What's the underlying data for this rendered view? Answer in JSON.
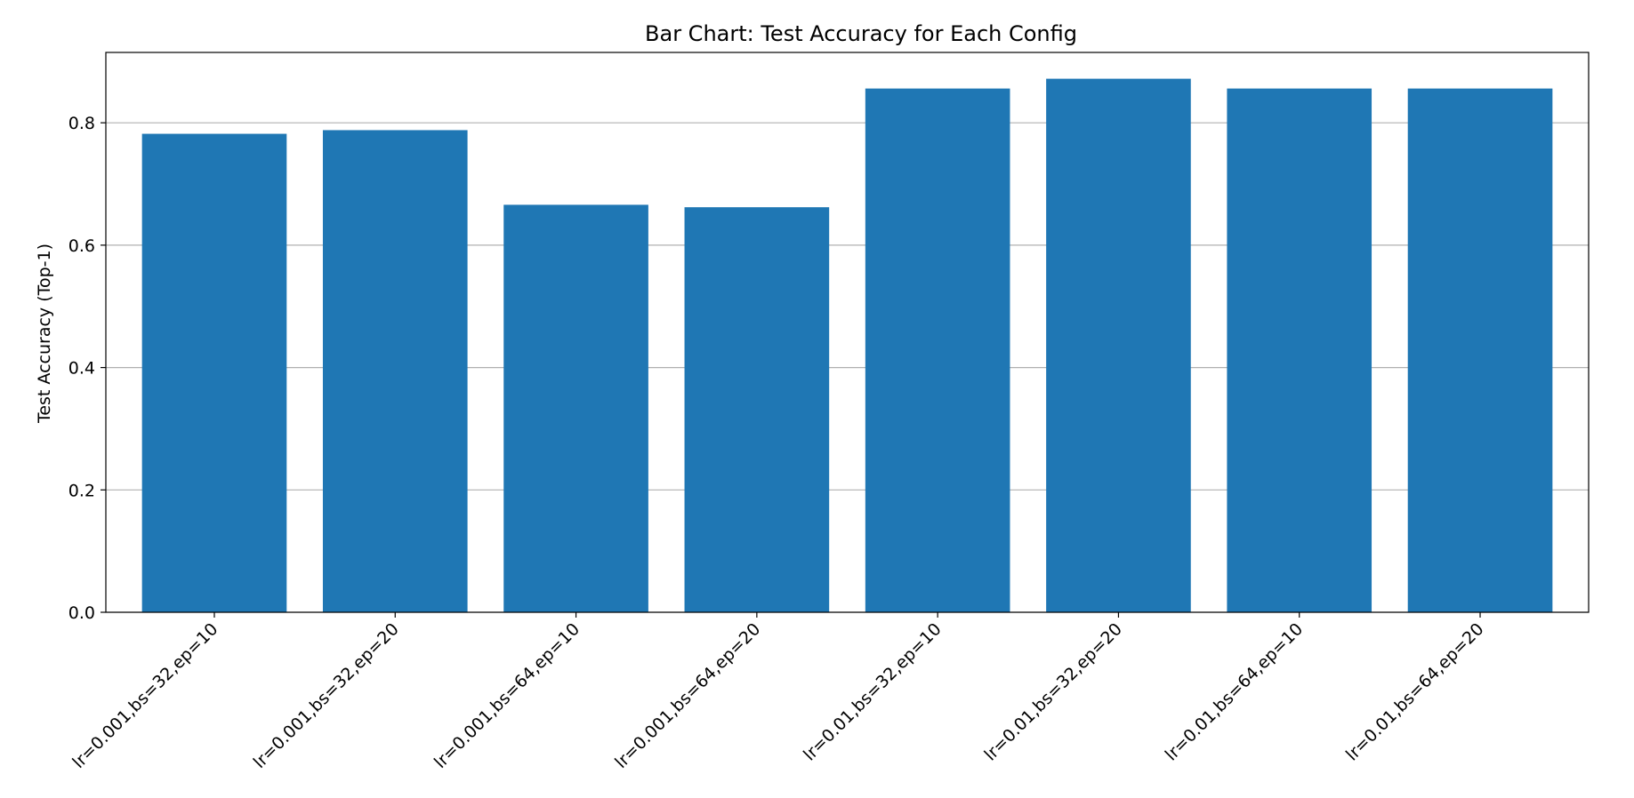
{
  "chart_data": {
    "type": "bar",
    "title": "Bar Chart: Test Accuracy for Each Config",
    "xlabel": "",
    "ylabel": "Test Accuracy (Top-1)",
    "ylim": [
      0,
      0.915
    ],
    "yticks": [
      0.0,
      0.2,
      0.4,
      0.6,
      0.8
    ],
    "ytick_labels": [
      "0.0",
      "0.2",
      "0.4",
      "0.6",
      "0.8"
    ],
    "grid": "horizontal",
    "categories": [
      "lr=0.001,bs=32,ep=10",
      "lr=0.001,bs=32,ep=20",
      "lr=0.001,bs=64,ep=10",
      "lr=0.001,bs=64,ep=20",
      "lr=0.01,bs=32,ep=10",
      "lr=0.01,bs=32,ep=20",
      "lr=0.01,bs=64,ep=10",
      "lr=0.01,bs=64,ep=20"
    ],
    "values": [
      0.782,
      0.788,
      0.666,
      0.662,
      0.856,
      0.872,
      0.856,
      0.856
    ],
    "colors": {
      "bar": "#1f77b4"
    }
  }
}
